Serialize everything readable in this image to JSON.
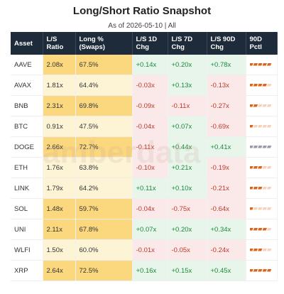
{
  "header": {
    "title": "Long/Short Ratio Snapshot",
    "subtitle": "As of 2026-05-10 | All"
  },
  "watermark": "amberdata",
  "table": {
    "columns": [
      "Asset",
      "L/S Ratio",
      "Long % (Swaps)",
      "L/S 1D Chg",
      "L/S 7D Chg",
      "L/S 90D Chg",
      "90D Pctl"
    ],
    "positive_color": "#1e8a3c",
    "negative_color": "#c0392b",
    "positive_fill": "#e7f5ea",
    "negative_fill": "#fbe9e9",
    "rows": [
      {
        "cells": [
          "AAVE",
          "2.08x",
          "67.5%",
          "+0.14x",
          "+0.20x",
          "+0.78x"
        ],
        "shade": "#fbd87e",
        "pctl": 5,
        "pctl_color": "#d9661f"
      },
      {
        "cells": [
          "AVAX",
          "1.81x",
          "64.4%",
          "-0.03x",
          "+0.13x",
          "-0.13x"
        ],
        "shade": "#fdf4d6",
        "pctl": 4,
        "pctl_color": "#d9661f"
      },
      {
        "cells": [
          "BNB",
          "2.31x",
          "69.8%",
          "-0.09x",
          "-0.11x",
          "-0.27x"
        ],
        "shade": "#fbd87e",
        "pctl": 2,
        "pctl_color": "#d9661f"
      },
      {
        "cells": [
          "BTC",
          "0.91x",
          "47.5%",
          "-0.04x",
          "+0.07x",
          "-0.69x"
        ],
        "shade": "#fdf4d6",
        "pctl": 1,
        "pctl_color": "#d9661f"
      },
      {
        "cells": [
          "DOGE",
          "2.66x",
          "72.7%",
          "-0.11x",
          "+0.44x",
          "+0.41x"
        ],
        "shade": "#fbd87e",
        "pctl": 5,
        "pctl_color": "#9a9aa8"
      },
      {
        "cells": [
          "ETH",
          "1.76x",
          "63.8%",
          "-0.10x",
          "+0.21x",
          "-0.19x"
        ],
        "shade": "#fdf4d6",
        "pctl": 3,
        "pctl_color": "#d9661f"
      },
      {
        "cells": [
          "LINK",
          "1.79x",
          "64.2%",
          "+0.11x",
          "+0.10x",
          "-0.21x"
        ],
        "shade": "#fdf4d6",
        "pctl": 3,
        "pctl_color": "#d9661f"
      },
      {
        "cells": [
          "SOL",
          "1.48x",
          "59.7%",
          "-0.04x",
          "-0.75x",
          "-0.64x"
        ],
        "shade": "#fbd87e",
        "pctl": 1,
        "pctl_color": "#d9661f"
      },
      {
        "cells": [
          "UNI",
          "2.11x",
          "67.8%",
          "+0.07x",
          "+0.20x",
          "+0.34x"
        ],
        "shade": "#fbd87e",
        "pctl": 4,
        "pctl_color": "#d9661f"
      },
      {
        "cells": [
          "WLFI",
          "1.50x",
          "60.0%",
          "-0.01x",
          "-0.05x",
          "-0.24x"
        ],
        "shade": "#fdf4d6",
        "pctl": 3,
        "pctl_color": "#d9661f"
      },
      {
        "cells": [
          "XRP",
          "2.64x",
          "72.5%",
          "+0.16x",
          "+0.15x",
          "+0.45x"
        ],
        "shade": "#fbd87e",
        "pctl": 5,
        "pctl_color": "#d9661f"
      }
    ]
  }
}
